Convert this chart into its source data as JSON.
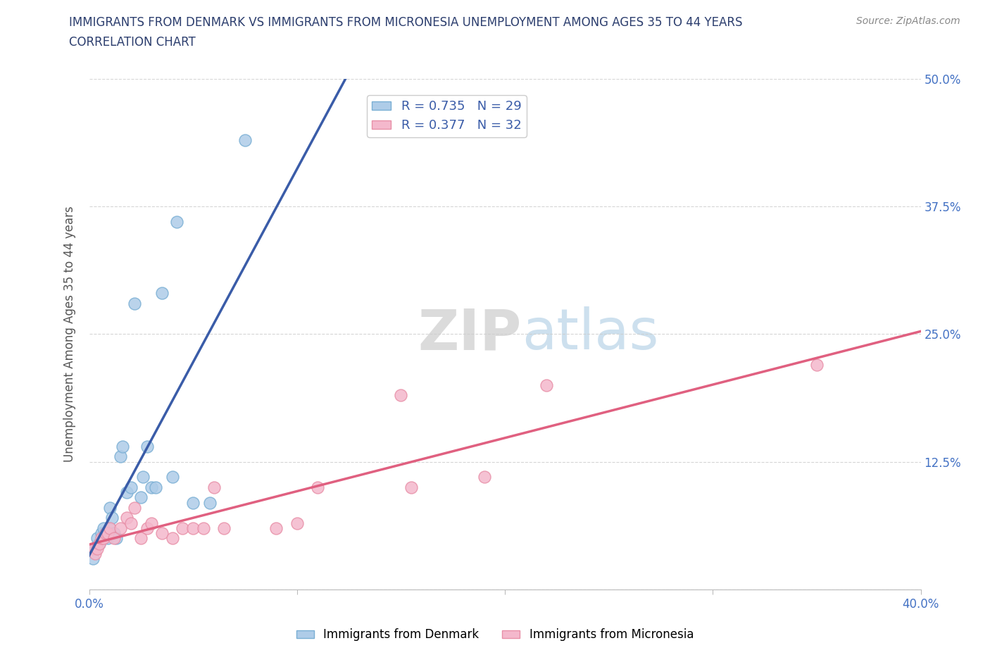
{
  "title_line1": "IMMIGRANTS FROM DENMARK VS IMMIGRANTS FROM MICRONESIA UNEMPLOYMENT AMONG AGES 35 TO 44 YEARS",
  "title_line2": "CORRELATION CHART",
  "source": "Source: ZipAtlas.com",
  "ylabel": "Unemployment Among Ages 35 to 44 years",
  "xlim": [
    0.0,
    0.4
  ],
  "ylim": [
    0.0,
    0.5
  ],
  "xtick_positions": [
    0.0,
    0.1,
    0.2,
    0.3,
    0.4
  ],
  "ytick_positions": [
    0.0,
    0.125,
    0.25,
    0.375,
    0.5
  ],
  "xticklabels": [
    "0.0%",
    "",
    "",
    "",
    "40.0%"
  ],
  "yticklabels_right": [
    "",
    "12.5%",
    "25.0%",
    "37.5%",
    "50.0%"
  ],
  "denmark_color": "#aecce8",
  "denmark_edge": "#7aafd4",
  "micronesia_color": "#f4b8cc",
  "micronesia_edge": "#e890a8",
  "denmark_R": 0.735,
  "denmark_N": 29,
  "micronesia_R": 0.377,
  "micronesia_N": 32,
  "trend_denmark_color": "#3a5ca8",
  "trend_micronesia_color": "#e06080",
  "tick_label_color": "#4472c4",
  "legend_label_denmark": "Immigrants from Denmark",
  "legend_label_micronesia": "Immigrants from Micronesia",
  "denmark_x": [
    0.002,
    0.003,
    0.004,
    0.005,
    0.006,
    0.007,
    0.008,
    0.009,
    0.01,
    0.01,
    0.011,
    0.012,
    0.013,
    0.015,
    0.016,
    0.018,
    0.02,
    0.022,
    0.025,
    0.026,
    0.028,
    0.03,
    0.032,
    0.035,
    0.04,
    0.042,
    0.05,
    0.058,
    0.075
  ],
  "denmark_y": [
    0.03,
    0.04,
    0.05,
    0.045,
    0.055,
    0.06,
    0.055,
    0.05,
    0.06,
    0.08,
    0.07,
    0.055,
    0.05,
    0.13,
    0.14,
    0.095,
    0.1,
    0.28,
    0.09,
    0.11,
    0.14,
    0.1,
    0.1,
    0.29,
    0.11,
    0.36,
    0.085,
    0.085,
    0.44
  ],
  "micronesia_x": [
    0.002,
    0.003,
    0.004,
    0.005,
    0.006,
    0.007,
    0.008,
    0.009,
    0.01,
    0.012,
    0.015,
    0.018,
    0.02,
    0.022,
    0.025,
    0.028,
    0.03,
    0.035,
    0.04,
    0.045,
    0.05,
    0.055,
    0.06,
    0.065,
    0.09,
    0.1,
    0.11,
    0.15,
    0.155,
    0.19,
    0.22,
    0.35
  ],
  "micronesia_y": [
    0.04,
    0.035,
    0.04,
    0.045,
    0.05,
    0.05,
    0.055,
    0.055,
    0.06,
    0.05,
    0.06,
    0.07,
    0.065,
    0.08,
    0.05,
    0.06,
    0.065,
    0.055,
    0.05,
    0.06,
    0.06,
    0.06,
    0.1,
    0.06,
    0.06,
    0.065,
    0.1,
    0.19,
    0.1,
    0.11,
    0.2,
    0.22
  ],
  "title_color": "#2c3e6e",
  "ylabel_color": "#555555",
  "source_color": "#888888",
  "grid_color": "#cccccc",
  "bottom_spine_color": "#bbbbbb"
}
